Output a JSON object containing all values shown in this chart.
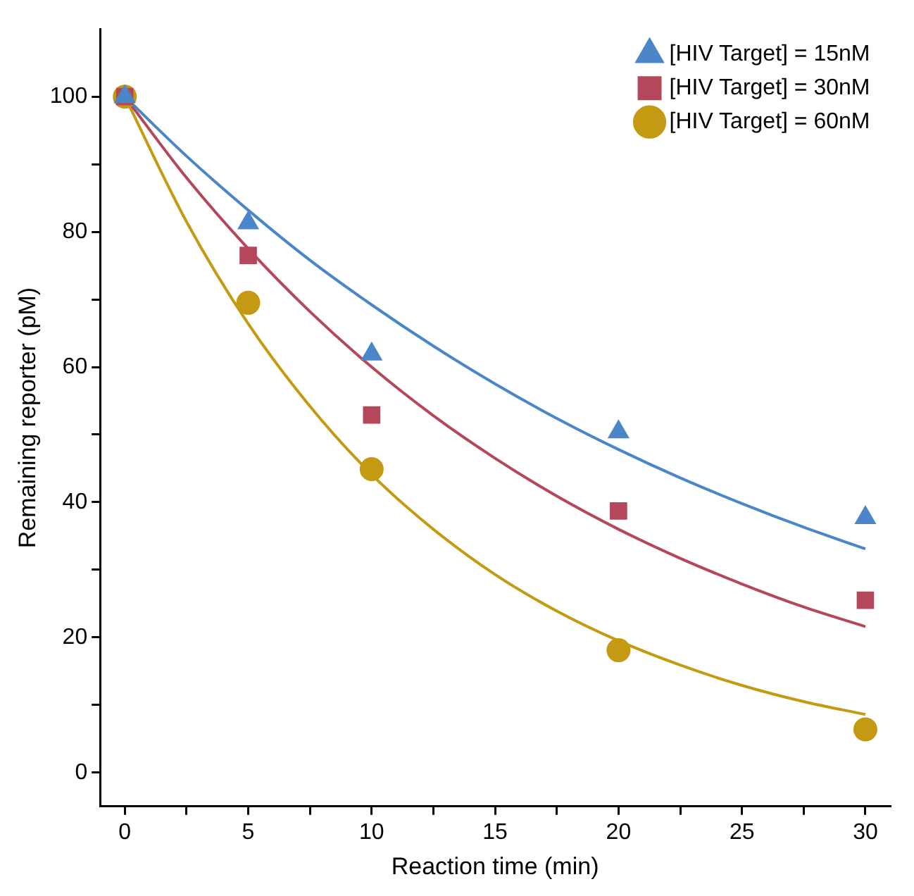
{
  "chart_data": {
    "type": "scatter",
    "xlabel": "Reaction time (min)",
    "ylabel": "Remaining reporter (pM)",
    "xlim": [
      -1,
      31
    ],
    "ylim": [
      -5,
      110
    ],
    "xticks": [
      0,
      {
        "value": 2.5,
        "label": null
      },
      5,
      {
        "value": 7.5,
        "label": null
      },
      10,
      {
        "value": 12.5,
        "label": null
      },
      15,
      {
        "value": 17.5,
        "label": null
      },
      20,
      {
        "value": 22.5,
        "label": null
      },
      25,
      {
        "value": 27.5,
        "label": null
      },
      30
    ],
    "yticks": [
      0,
      {
        "value": 10,
        "label": null
      },
      20,
      {
        "value": 30,
        "label": null
      },
      40,
      {
        "value": 50,
        "label": null
      },
      60,
      {
        "value": 70,
        "label": null
      },
      80,
      {
        "value": 90,
        "label": null
      },
      100
    ],
    "grid": false,
    "legend": "top right",
    "marker": "circle",
    "series": [
      {
        "name": "[HIV Target] = 15nM",
        "marker": "triangle",
        "color": "#4a86c8",
        "x": [
          0,
          5,
          10,
          20,
          30
        ],
        "values": [
          100,
          81.3,
          61.9,
          50.4,
          37.7
        ]
      },
      {
        "name": "[HIV Target] = 30nM",
        "marker": "square",
        "color": "#b5475a",
        "x": [
          0,
          5,
          10,
          20,
          30
        ],
        "values": [
          100,
          76.5,
          52.9,
          38.7,
          25.5
        ]
      },
      {
        "name": "[HIV Target] = 60nM",
        "color": "#c49a12",
        "x": [
          0,
          5,
          10,
          20,
          30
        ],
        "values": [
          100,
          69.5,
          44.9,
          18.1,
          6.4
        ]
      },
      {
        "type": "line",
        "marker": "none",
        "line_style": "solid",
        "color": "#4a86c8",
        "x": [
          0,
          2.5,
          5,
          7.5,
          10,
          12.5,
          15,
          17.5,
          20,
          22.5,
          25,
          27.5,
          30
        ],
        "values": [
          100,
          91.2,
          83.2,
          75.8,
          69.2,
          63.1,
          57.5,
          52.4,
          47.8,
          43.6,
          39.8,
          36.3,
          33.1
        ]
      },
      {
        "type": "line",
        "marker": "none",
        "line_style": "solid",
        "color": "#b5475a",
        "x": [
          0,
          2.5,
          5,
          7.5,
          10,
          12.5,
          15,
          17.5,
          20,
          22.5,
          25,
          27.5,
          30
        ],
        "values": [
          100,
          88.0,
          77.5,
          68.2,
          60.0,
          52.8,
          46.5,
          40.9,
          36.0,
          31.7,
          27.9,
          24.5,
          21.6
        ]
      },
      {
        "type": "line",
        "marker": "none",
        "line_style": "solid",
        "color": "#c49a12",
        "x": [
          0,
          2.5,
          5,
          7.5,
          10,
          12.5,
          15,
          17.5,
          20,
          22.5,
          25,
          27.5,
          30
        ],
        "values": [
          100,
          81.5,
          66.4,
          54.2,
          44.1,
          36.0,
          29.3,
          23.9,
          19.5,
          15.9,
          12.9,
          10.5,
          8.6
        ]
      }
    ]
  }
}
